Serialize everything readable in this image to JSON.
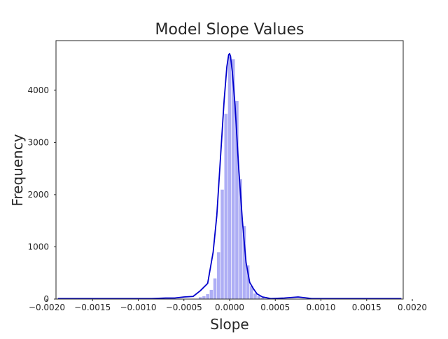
{
  "chart_data": {
    "type": "bar",
    "title": "Model Slope Values",
    "xlabel": "Slope",
    "ylabel": "Frequency",
    "xlim": [
      -0.0019,
      0.0019
    ],
    "ylim": [
      0,
      4950
    ],
    "xticks": [
      -0.002,
      -0.0015,
      -0.001,
      -0.0005,
      0.0,
      0.0005,
      0.001,
      0.0015,
      0.002
    ],
    "xtick_labels": [
      "−0.0020",
      "−0.0015",
      "−0.0010",
      "−0.0005",
      "0.0000",
      "0.0005",
      "0.0010",
      "0.0015",
      "0.0020"
    ],
    "yticks": [
      0,
      1000,
      2000,
      3000,
      4000
    ],
    "ytick_labels": [
      "0",
      "1000",
      "2000",
      "3000",
      "4000"
    ],
    "grid": false,
    "legend": "none",
    "bar_color": "#aeaef5",
    "kde_color": "#0000cc",
    "series": [
      {
        "type": "histogram",
        "bins": [
          {
            "x0": -0.00034,
            "x1": -0.0003,
            "value": 40
          },
          {
            "x0": -0.0003,
            "x1": -0.00026,
            "value": 60
          },
          {
            "x0": -0.00026,
            "x1": -0.00022,
            "value": 100
          },
          {
            "x0": -0.00022,
            "x1": -0.00018,
            "value": 180
          },
          {
            "x0": -0.00018,
            "x1": -0.00014,
            "value": 400
          },
          {
            "x0": -0.00014,
            "x1": -0.0001,
            "value": 900
          },
          {
            "x0": -0.0001,
            "x1": -6e-05,
            "value": 2100
          },
          {
            "x0": -6e-05,
            "x1": -2e-05,
            "value": 3550
          },
          {
            "x0": -2e-05,
            "x1": 2e-05,
            "value": 4650
          },
          {
            "x0": 2e-05,
            "x1": 6e-05,
            "value": 4600
          },
          {
            "x0": 6e-05,
            "x1": 0.0001,
            "value": 3800
          },
          {
            "x0": 0.0001,
            "x1": 0.00014,
            "value": 2300
          },
          {
            "x0": 0.00014,
            "x1": 0.00018,
            "value": 1400
          },
          {
            "x0": 0.00018,
            "x1": 0.00022,
            "value": 650
          },
          {
            "x0": 0.00022,
            "x1": 0.00026,
            "value": 250
          },
          {
            "x0": 0.00026,
            "x1": 0.0003,
            "value": 110
          },
          {
            "x0": 0.0003,
            "x1": 0.00034,
            "value": 60
          },
          {
            "x0": 0.00034,
            "x1": 0.00038,
            "value": 30
          }
        ]
      },
      {
        "type": "kde",
        "x": [
          -0.00188,
          -0.0016,
          -0.0013,
          -0.0011,
          -0.00085,
          -0.0007,
          -0.0006,
          -0.0005,
          -0.0004,
          -0.00032,
          -0.00024,
          -0.00018,
          -0.00014,
          -0.0001,
          -6e-05,
          -3e-05,
          -1e-05,
          0.0,
          1e-05,
          3e-05,
          6e-05,
          0.0001,
          0.00014,
          0.00018,
          0.00022,
          0.00026,
          0.0003,
          0.00036,
          0.00045,
          0.0006,
          0.00075,
          0.0009,
          0.0011,
          0.0013,
          0.0016,
          0.00188
        ],
        "y": [
          10,
          10,
          10,
          10,
          10,
          20,
          20,
          40,
          50,
          160,
          300,
          900,
          1600,
          2700,
          3800,
          4450,
          4680,
          4700,
          4650,
          4350,
          3700,
          2500,
          1500,
          700,
          320,
          200,
          100,
          40,
          10,
          20,
          40,
          10,
          10,
          10,
          10,
          10
        ]
      }
    ]
  }
}
